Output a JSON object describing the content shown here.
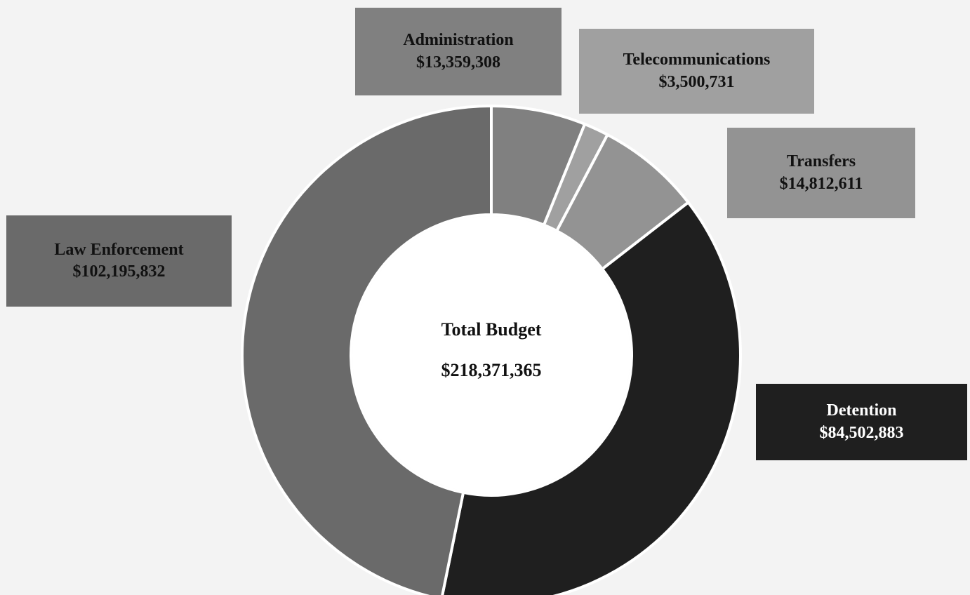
{
  "chart_data": {
    "type": "pie",
    "variant": "donut",
    "categories": [
      "Administration",
      "Telecommunications",
      "Transfers",
      "Detention",
      "Law Enforcement"
    ],
    "values": [
      13359308,
      3500731,
      14812611,
      84502883,
      102195832
    ],
    "value_labels": [
      "$13,359,308",
      "$3,500,731",
      "$14,812,611",
      "$84,502,883",
      "$102,195,832"
    ],
    "colors": [
      "#808080",
      "#a0a0a0",
      "#939393",
      "#1f1f1f",
      "#6a6a6a"
    ],
    "label_colors": [
      "#111111",
      "#111111",
      "#111111",
      "#ffffff",
      "#111111"
    ],
    "center_title": "Total Budget",
    "center_value": "$218,371,365",
    "legend": "none"
  }
}
